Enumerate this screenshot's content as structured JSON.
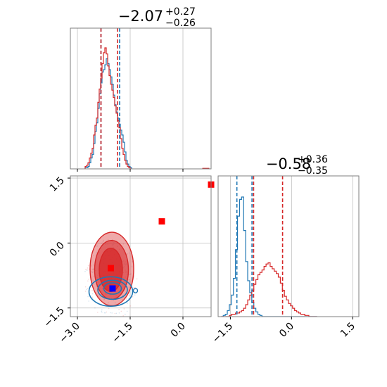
{
  "colors": {
    "blue": "#1f77b4",
    "red": "#d62728",
    "marker_red": "#ff0000",
    "marker_blue": "#0000ff",
    "grid": "#c0c0c0",
    "axis": "#7f7f7f"
  },
  "chart_data": [
    {
      "type": "histogram",
      "panel": "param-1-marginal",
      "title": {
        "main": "−2.07",
        "sup": "+0.27",
        "sub": "−0.26"
      },
      "xlim": [
        -3.2,
        0.8
      ],
      "grid": true,
      "bins_x": [
        -2.76,
        -2.72,
        -2.68,
        -2.64,
        -2.6,
        -2.56,
        -2.52,
        -2.48,
        -2.44,
        -2.4,
        -2.36,
        -2.32,
        -2.28,
        -2.24,
        -2.2,
        -2.16,
        -2.12,
        -2.08,
        -2.04,
        -2.0,
        -1.96,
        -1.92,
        -1.88,
        -1.84,
        -1.8,
        -1.76,
        -1.72,
        -1.68,
        -1.64,
        -1.6,
        -1.56,
        -1.52,
        -1.48
      ],
      "series": [
        {
          "name": "",
          "color": "blue",
          "values": [
            0.01,
            0.01,
            0.02,
            0.05,
            0.09,
            0.12,
            0.21,
            0.31,
            0.38,
            0.5,
            0.62,
            0.71,
            0.8,
            0.82,
            0.86,
            0.91,
            0.87,
            0.82,
            0.76,
            0.7,
            0.61,
            0.53,
            0.47,
            0.42,
            0.37,
            0.32,
            0.28,
            0.22,
            0.14,
            0.07,
            0.04,
            0.02,
            0.01
          ]
        },
        {
          "name": "",
          "color": "red",
          "values": [
            0.02,
            0.03,
            0.05,
            0.09,
            0.13,
            0.17,
            0.28,
            0.36,
            0.42,
            0.55,
            0.66,
            0.75,
            0.87,
            0.96,
            1.0,
            0.95,
            0.85,
            0.77,
            0.7,
            0.65,
            0.59,
            0.52,
            0.46,
            0.4,
            0.34,
            0.25,
            0.17,
            0.12,
            0.07,
            0.04,
            0.02,
            0.01,
            0.0
          ]
        }
      ],
      "vlines": [
        {
          "x": -2.33,
          "color": "blue"
        },
        {
          "x": -1.8,
          "color": "blue"
        },
        {
          "x": -2.33,
          "color": "red"
        },
        {
          "x": -1.86,
          "color": "red"
        }
      ]
    },
    {
      "type": "histogram",
      "panel": "param-2-marginal",
      "title": {
        "main": "−0.58",
        "sup": "+0.36",
        "sub": "−0.35"
      },
      "xlim": [
        -1.8,
        1.65
      ],
      "xticks": [
        -1.5,
        0.0,
        1.5
      ],
      "xtick_labels": [
        "−1.5",
        "0.0",
        "1.5"
      ],
      "grid": true,
      "bins_x": [
        -1.7,
        -1.65,
        -1.6,
        -1.55,
        -1.5,
        -1.45,
        -1.4,
        -1.35,
        -1.3,
        -1.25,
        -1.2,
        -1.15,
        -1.1,
        -1.05,
        -1.0,
        -0.95,
        -0.9,
        -0.85,
        -0.8,
        -0.75,
        -0.7,
        -0.65,
        -0.6,
        -0.55,
        -0.5,
        -0.45,
        -0.4,
        -0.35,
        -0.3,
        -0.25,
        -0.2,
        -0.15,
        -0.1,
        -0.05,
        0.0,
        0.05,
        0.1,
        0.15,
        0.2,
        0.25,
        0.3,
        0.35,
        0.4,
        0.45,
        0.5,
        0.55,
        0.6
      ],
      "series": [
        {
          "name": "",
          "color": "blue",
          "values": [
            0.0,
            0.01,
            0.02,
            0.05,
            0.1,
            0.18,
            0.32,
            0.56,
            0.84,
            0.98,
            1.0,
            0.72,
            0.46,
            0.3,
            0.2,
            0.12,
            0.07,
            0.04,
            0.02,
            0.01,
            0.0,
            0.0,
            0,
            0,
            0,
            0,
            0,
            0,
            0,
            0,
            0,
            0,
            0,
            0,
            0,
            0,
            0,
            0,
            0,
            0,
            0,
            0,
            0,
            0,
            0,
            0,
            0
          ]
        },
        {
          "name": "",
          "color": "red",
          "values": [
            0.0,
            0.0,
            0.0,
            0.0,
            0.01,
            0.02,
            0.02,
            0.03,
            0.03,
            0.04,
            0.05,
            0.07,
            0.1,
            0.14,
            0.18,
            0.22,
            0.27,
            0.31,
            0.35,
            0.37,
            0.39,
            0.42,
            0.44,
            0.45,
            0.42,
            0.4,
            0.38,
            0.36,
            0.33,
            0.28,
            0.22,
            0.17,
            0.14,
            0.11,
            0.09,
            0.07,
            0.05,
            0.04,
            0.03,
            0.02,
            0.02,
            0.01,
            0.01,
            0.0,
            0.0,
            0.0,
            0.0
          ]
        }
      ],
      "vlines": [
        {
          "x": -1.34,
          "color": "blue"
        },
        {
          "x": -0.97,
          "color": "blue"
        },
        {
          "x": -0.93,
          "color": "red"
        },
        {
          "x": -0.22,
          "color": "red"
        }
      ]
    },
    {
      "type": "contour",
      "panel": "joint",
      "xlim": [
        -3.2,
        0.8
      ],
      "ylim": [
        -1.7,
        1.55
      ],
      "xticks": [
        -3.0,
        -1.5,
        0.0
      ],
      "xtick_labels": [
        "−3.0",
        "−1.5",
        "0.0"
      ],
      "yticks": [
        -1.5,
        0.0,
        1.5
      ],
      "ytick_labels": [
        "−1.5",
        "0.0",
        "1.5"
      ],
      "grid": true,
      "red_contours": [
        {
          "cx": -2.02,
          "cy": -0.6,
          "rx": 0.62,
          "ry": 0.85,
          "fill_opacity": 0.4
        },
        {
          "cx": -2.03,
          "cy": -0.62,
          "rx": 0.48,
          "ry": 0.68,
          "fill_opacity": 0.55
        },
        {
          "cx": -2.05,
          "cy": -0.62,
          "rx": 0.33,
          "ry": 0.5,
          "fill_opacity": 0.75
        }
      ],
      "blue_contours": [
        {
          "cx": -2.05,
          "cy": -1.12,
          "rx": 0.62,
          "ry": 0.34
        },
        {
          "cx": -2.0,
          "cy": -1.08,
          "rx": 0.42,
          "ry": 0.22
        },
        {
          "cx": -2.0,
          "cy": -1.05,
          "rx": 0.25,
          "ry": 0.13
        }
      ],
      "markers": [
        {
          "x": -2.05,
          "y": -0.58,
          "color": "marker_red"
        },
        {
          "x": -2.0,
          "y": -1.05,
          "color": "marker_blue"
        },
        {
          "x": -0.6,
          "y": 0.5,
          "color": "marker_red"
        },
        {
          "x": 0.8,
          "y": 1.35,
          "color": "marker_red"
        }
      ]
    }
  ]
}
